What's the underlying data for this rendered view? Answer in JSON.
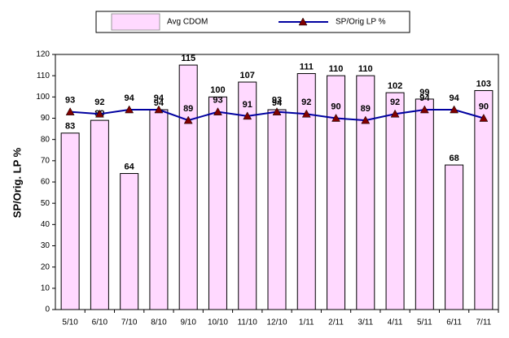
{
  "chart_data": {
    "type": "bar",
    "ylabel": "SP/Orig. LP %",
    "categories": [
      "5/10",
      "6/10",
      "7/10",
      "8/10",
      "9/10",
      "10/10",
      "11/10",
      "12/10",
      "1/11",
      "2/11",
      "3/11",
      "4/11",
      "5/11",
      "6/11",
      "7/11"
    ],
    "series": [
      {
        "name": "Avg CDOM",
        "type": "bar",
        "color": "#ffd9ff",
        "values": [
          83,
          89,
          64,
          94,
          115,
          100,
          107,
          94,
          111,
          110,
          110,
          102,
          99,
          68,
          103
        ]
      },
      {
        "name": "SP/Orig LP %",
        "type": "line",
        "color": "#0000a0",
        "marker_color": "#800000",
        "values": [
          93,
          92,
          94,
          94,
          89,
          93,
          91,
          93,
          92,
          90,
          89,
          92,
          94,
          94,
          90
        ]
      }
    ],
    "ylim": [
      0,
      120
    ],
    "yticks": [
      0,
      10,
      20,
      30,
      40,
      50,
      60,
      70,
      80,
      90,
      100,
      110,
      120
    ]
  }
}
